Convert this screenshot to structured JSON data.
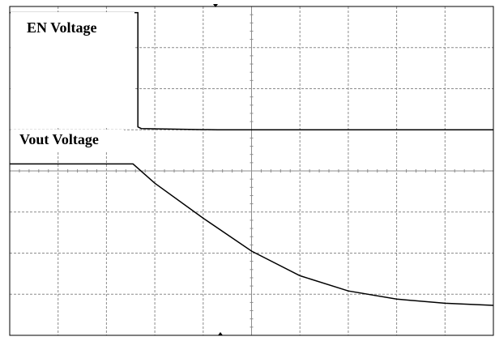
{
  "chart_data": {
    "type": "line",
    "grid": true,
    "x_divisions": 10,
    "y_divisions": 8,
    "annotations": {
      "en": "EN Voltage",
      "vout": "Vout Voltage"
    },
    "series": [
      {
        "name": "EN Voltage",
        "points": [
          [
            0,
            7.85
          ],
          [
            2.65,
            7.85
          ],
          [
            2.65,
            5.07
          ],
          [
            2.72,
            5.03
          ],
          [
            4.3,
            5.0
          ],
          [
            10,
            5.0
          ]
        ]
      },
      {
        "name": "Vout Voltage",
        "points": [
          [
            0,
            4.17
          ],
          [
            2.55,
            4.17
          ],
          [
            3.0,
            3.7
          ],
          [
            4.0,
            2.85
          ],
          [
            5.0,
            2.05
          ],
          [
            6.0,
            1.45
          ],
          [
            7.0,
            1.08
          ],
          [
            8.0,
            0.88
          ],
          [
            9.0,
            0.78
          ],
          [
            10,
            0.73
          ]
        ]
      }
    ]
  }
}
